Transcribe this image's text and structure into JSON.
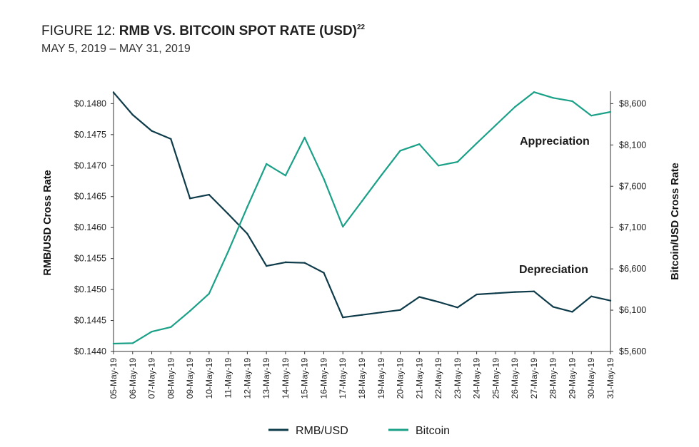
{
  "header": {
    "figure_label": "FIGURE 12: ",
    "title_bold": "RMB VS. BITCOIN SPOT RATE (USD)",
    "footnote": "22",
    "subtitle": "MAY 5, 2019 – MAY 31, 2019"
  },
  "chart_data": {
    "type": "line",
    "title": "RMB VS. BITCOIN SPOT RATE (USD)",
    "subtitle": "MAY 5, 2019 – MAY 31, 2019",
    "categories": [
      "05-May-19",
      "06-May-19",
      "07-May-19",
      "08-May-19",
      "09-May-19",
      "10-May-19",
      "11-May-19",
      "12-May-19",
      "13-May-19",
      "14-May-19",
      "15-May-19",
      "16-May-19",
      "17-May-19",
      "18-May-19",
      "19-May-19",
      "20-May-19",
      "21-May-19",
      "22-May-19",
      "23-May-19",
      "24-May-19",
      "25-May-19",
      "26-May-19",
      "27-May-19",
      "28-May-19",
      "29-May-19",
      "30-May-19",
      "31-May-19"
    ],
    "series": [
      {
        "name": "RMB/USD",
        "axis": "left",
        "color": "#0e3b4a",
        "values": [
          0.14818,
          0.14782,
          0.14756,
          0.14743,
          0.14647,
          0.14653,
          0.14622,
          0.1459,
          0.14538,
          0.14544,
          0.14543,
          0.14527,
          0.14455,
          0.14459,
          0.14463,
          0.14467,
          0.14488,
          0.1448,
          0.14471,
          0.14492,
          0.14494,
          0.14496,
          0.14497,
          0.14472,
          0.14464,
          0.14489,
          0.14482
        ]
      },
      {
        "name": "Bitcoin",
        "axis": "right",
        "color": "#1aa087",
        "values": [
          5695,
          5700,
          5840,
          5895,
          6090,
          6300,
          6810,
          7350,
          7870,
          7730,
          8190,
          7690,
          7110,
          7420,
          7730,
          8030,
          8110,
          7850,
          7895,
          8120,
          8340,
          8560,
          8740,
          8670,
          8630,
          8455,
          8500
        ]
      }
    ],
    "y_left": {
      "label": "RMB/USD Cross Rate",
      "ylim": [
        0.144,
        0.1482
      ],
      "ticks": [
        0.144,
        0.1445,
        0.145,
        0.1455,
        0.146,
        0.1465,
        0.147,
        0.1475,
        0.148
      ],
      "tick_labels": [
        "$0.1440",
        "$0.1445",
        "$0.1450",
        "$0.1455",
        "$0.1460",
        "$0.1465",
        "$0.1470",
        "$0.1475",
        "$0.1480"
      ]
    },
    "y_right": {
      "label": "Bitcoin/USD Cross Rate",
      "ylim": [
        5600,
        8750
      ],
      "ticks": [
        5600,
        6100,
        6600,
        7100,
        7600,
        8100,
        8600
      ],
      "tick_labels": [
        "$5,600",
        "$6,100",
        "$6,600",
        "$7,100",
        "$7,600",
        "$8,100",
        "$8,600"
      ]
    },
    "annotations": [
      {
        "text": "Appreciation",
        "series": "Bitcoin"
      },
      {
        "text": "Depreciation",
        "series": "RMB/USD"
      }
    ],
    "legend": {
      "placement": "bottom-center",
      "entries": [
        "RMB/USD",
        "Bitcoin"
      ]
    },
    "grid": false
  }
}
